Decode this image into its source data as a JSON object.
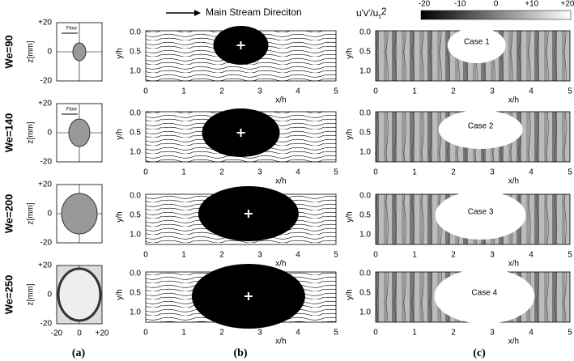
{
  "row_labels": [
    "We=90",
    "We=140",
    "We=200",
    "We=250"
  ],
  "panel_a": {
    "caption": "(a)",
    "ylabel": "z[mm]",
    "yticks": [
      "+20",
      "0",
      "-20"
    ],
    "xticks": [
      "-20",
      "0",
      "+20"
    ],
    "flow": "Flow"
  },
  "panel_b": {
    "caption": "(b)",
    "header": "Main Stream Direciton",
    "ylabel": "y/h",
    "xlabel": "x/h",
    "yticks": [
      "0.0",
      "0.5",
      "1.0"
    ],
    "xticks": [
      "0",
      "1",
      "2",
      "3",
      "4",
      "5"
    ]
  },
  "panel_c": {
    "caption": "(c)",
    "colorbar_label": {
      "main": "u'v'/u",
      "sub": "τ",
      "sup": "2"
    },
    "colorbar_ticks": [
      "-20",
      "-10",
      "0",
      "+10",
      "+20"
    ],
    "ylabel": "y/h",
    "xlabel": "x/h",
    "yticks": [
      "0.0",
      "0.5",
      "1.0"
    ],
    "xticks": [
      "0",
      "1",
      "2",
      "3",
      "4",
      "5"
    ],
    "cases": [
      "Case 1",
      "Case 2",
      "Case 3",
      "Case 4"
    ]
  }
}
